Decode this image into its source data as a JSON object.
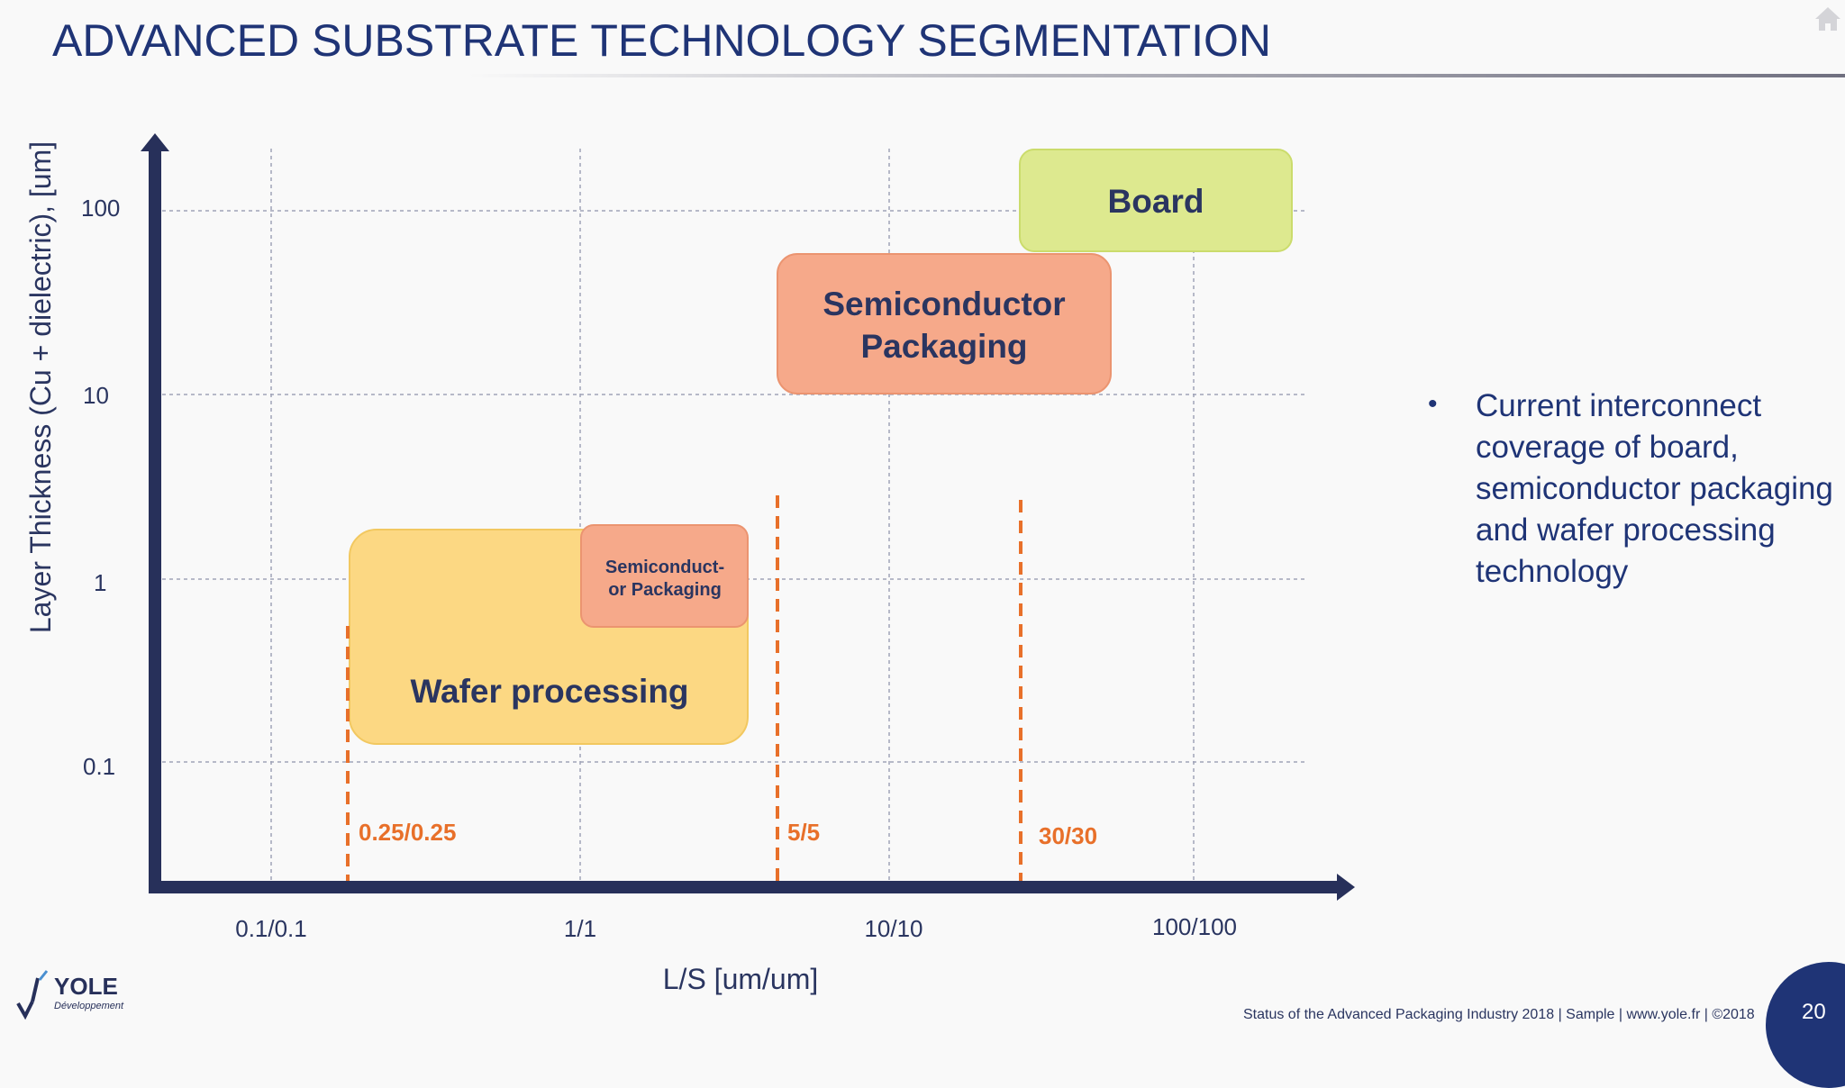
{
  "slide": {
    "title": "ADVANCED SUBSTRATE TECHNOLOGY SEGMENTATION",
    "bullet": "Current interconnect coverage of board, semiconductor packaging and wafer processing technology",
    "footer": "Status of the Advanced Packaging Industry 2018 | Sample | www.yole.fr | ©2018",
    "page_number": "20",
    "logo_text": "YOLE",
    "logo_subtext": "Développement"
  },
  "colors": {
    "axis": "#27305a",
    "title": "#1f3476",
    "marker": "#e8702a",
    "board_fill": "#dde98f",
    "semiconductor_fill": "#f6a98a",
    "wafer_fill": "#fcd883"
  },
  "chart_data": {
    "type": "diagram",
    "x_axis": {
      "label": "L/S [um/um]",
      "scale": "log",
      "ticks": [
        "0.1/0.1",
        "1/1",
        "10/10",
        "100/100"
      ]
    },
    "y_axis": {
      "label": "Layer Thickness (Cu + dielectric), [um]",
      "scale": "log",
      "ticks": [
        "0.1",
        "1",
        "10",
        "100"
      ]
    },
    "regions": [
      {
        "name": "Board",
        "x_range": [
          30,
          150
        ],
        "y_range": [
          60,
          200
        ],
        "color": "#dde98f"
      },
      {
        "name": "Semiconductor Packaging",
        "x_range": [
          4.5,
          45
        ],
        "y_range": [
          10,
          120
        ],
        "color": "#f6a98a"
      },
      {
        "name": "Semiconduct-or Packaging",
        "x_range": [
          1,
          4
        ],
        "y_range": [
          0.4,
          1.4
        ],
        "color": "#f6a98a"
      },
      {
        "name": "Wafer processing",
        "x_range": [
          0.2,
          4
        ],
        "y_range": [
          0.12,
          1.3
        ],
        "color": "#fcd883"
      }
    ],
    "markers": [
      {
        "label": "0.25/0.25",
        "x": 0.25
      },
      {
        "label": "5/5",
        "x": 5
      },
      {
        "label": "30/30",
        "x": 30
      }
    ]
  }
}
